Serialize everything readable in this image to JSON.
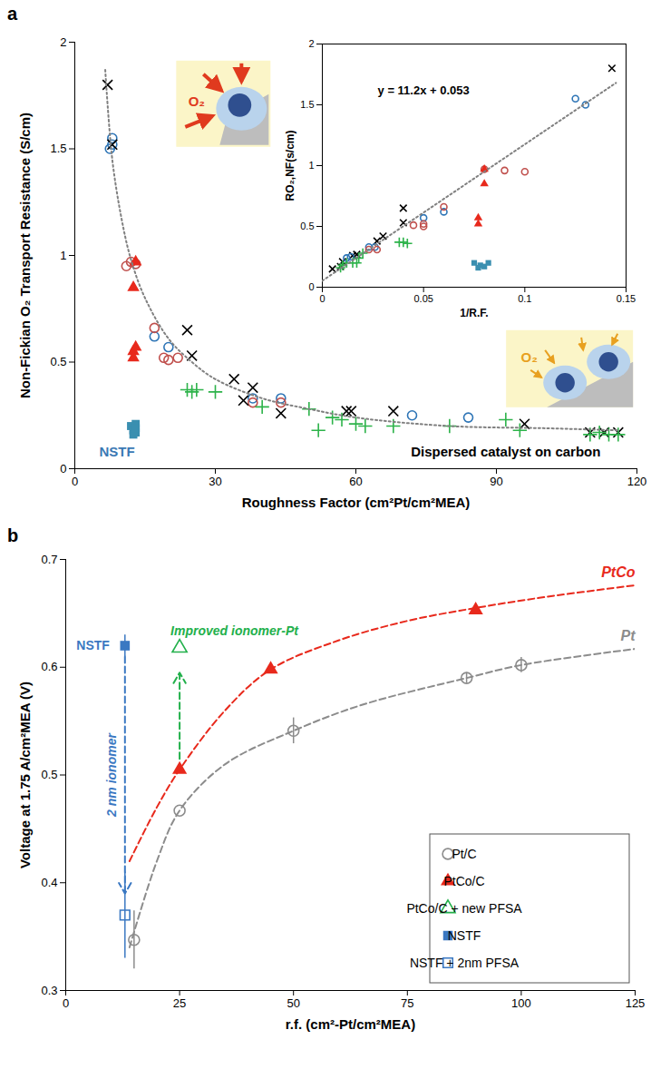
{
  "chart_data": [
    {
      "type": "scatter",
      "title": "a",
      "x_label": "Roughness Factor (cm²Pt/cm²MEA)",
      "y_label": "Non-Fickian O₂ Transport Resistance (S/cm)",
      "xlim": [
        0,
        120
      ],
      "xticks": [
        0,
        30,
        60,
        90,
        120
      ],
      "ylim": [
        0,
        2
      ],
      "yticks": [
        0,
        0.5,
        1,
        1.5,
        2
      ],
      "grid": false,
      "series": [
        {
          "color": "#2e75b6",
          "marker": "circle-open",
          "x": [
            7.5,
            8,
            8,
            17,
            20,
            38,
            44,
            72,
            84
          ],
          "values": [
            1.5,
            1.55,
            1.52,
            0.62,
            0.57,
            0.33,
            0.33,
            0.25,
            0.24
          ]
        },
        {
          "color": "#c0504d",
          "marker": "circle-open",
          "x": [
            11,
            12,
            13,
            17,
            19,
            20,
            22,
            38,
            44
          ],
          "values": [
            0.95,
            0.97,
            0.96,
            0.66,
            0.52,
            0.51,
            0.52,
            0.31,
            0.31
          ]
        },
        {
          "color": "#e8291c",
          "marker": "triangle",
          "x": [
            12.5,
            13,
            12.5,
            12.5,
            13
          ],
          "values": [
            0.85,
            0.97,
            0.55,
            0.52,
            0.57
          ]
        },
        {
          "color": "#000000",
          "marker": "x",
          "x": [
            7,
            8,
            24,
            25,
            34,
            36,
            38,
            44,
            58,
            59,
            68,
            96,
            110,
            113,
            116
          ],
          "values": [
            1.8,
            1.52,
            0.65,
            0.53,
            0.42,
            0.32,
            0.38,
            0.26,
            0.27,
            0.27,
            0.27,
            0.21,
            0.17,
            0.17,
            0.17
          ]
        },
        {
          "color": "#2db34a",
          "marker": "plus",
          "x": [
            24,
            25,
            26,
            30,
            40,
            50,
            52,
            55,
            57,
            60,
            62,
            68,
            80,
            92,
            95,
            110,
            112,
            114,
            116
          ],
          "values": [
            0.37,
            0.36,
            0.37,
            0.36,
            0.29,
            0.28,
            0.18,
            0.24,
            0.23,
            0.21,
            0.2,
            0.2,
            0.2,
            0.23,
            0.18,
            0.16,
            0.17,
            0.16,
            0.16
          ]
        },
        {
          "color": "#3a8fb0",
          "marker": "square",
          "x": [
            12,
            12.5,
            13,
            13,
            12.5,
            13
          ],
          "values": [
            0.2,
            0.18,
            0.17,
            0.21,
            0.16,
            0.19
          ]
        },
        {
          "type": "line",
          "line_style": "dotted",
          "color": "#808080",
          "x": [
            6.5,
            8,
            10,
            12,
            15,
            20,
            25,
            30,
            40,
            50,
            60,
            80,
            100,
            116
          ],
          "values": [
            1.87,
            1.45,
            1.17,
            0.98,
            0.8,
            0.61,
            0.5,
            0.42,
            0.33,
            0.28,
            0.24,
            0.2,
            0.19,
            0.18
          ]
        }
      ],
      "annotations": [
        {
          "text": "NSTF",
          "x": 9,
          "y": 0.08,
          "color": "#3a78b4"
        },
        {
          "text": "Dispersed catalyst on carbon",
          "x": 92,
          "y": 0.08,
          "color": "#000000"
        },
        {
          "text": "O₂",
          "x": 26,
          "y": 1.72,
          "color": "#e03a1e"
        },
        {
          "text": "O₂",
          "x": 97,
          "y": 0.52,
          "color": "#e8a020"
        }
      ]
    },
    {
      "type": "scatter",
      "x_label": "1/R.F.",
      "y_label": "RO₂,NF(s/cm)",
      "xlim": [
        0,
        0.15
      ],
      "xticks": [
        0,
        0.05,
        0.1,
        0.15
      ],
      "ylim": [
        0,
        2
      ],
      "yticks": [
        0,
        0.5,
        1,
        1.5,
        2
      ],
      "grid": false,
      "series": [
        {
          "color": "#000000",
          "marker": "x",
          "x": [
            0.143,
            0.04,
            0.04,
            0.03,
            0.027,
            0.017,
            0.015,
            0.01,
            0.009,
            0.005
          ],
          "values": [
            1.8,
            0.65,
            0.53,
            0.42,
            0.38,
            0.27,
            0.26,
            0.21,
            0.17,
            0.15
          ]
        },
        {
          "color": "#2e75b6",
          "marker": "circle-open",
          "x": [
            0.125,
            0.13,
            0.06,
            0.05,
            0.026,
            0.023,
            0.014,
            0.012
          ],
          "values": [
            1.55,
            1.5,
            0.62,
            0.57,
            0.33,
            0.33,
            0.25,
            0.24
          ]
        },
        {
          "color": "#c0504d",
          "marker": "circle-open",
          "x": [
            0.08,
            0.09,
            0.1,
            0.06,
            0.05,
            0.045,
            0.05,
            0.027,
            0.023
          ],
          "values": [
            0.97,
            0.96,
            0.95,
            0.66,
            0.52,
            0.51,
            0.5,
            0.31,
            0.31
          ]
        },
        {
          "color": "#e8291c",
          "marker": "triangle",
          "x": [
            0.08,
            0.08,
            0.077,
            0.077
          ],
          "values": [
            0.97,
            0.85,
            0.57,
            0.52
          ]
        },
        {
          "color": "#2db34a",
          "marker": "plus",
          "x": [
            0.04,
            0.042,
            0.038,
            0.02,
            0.018,
            0.017,
            0.015,
            0.012,
            0.01,
            0.009
          ],
          "values": [
            0.37,
            0.36,
            0.37,
            0.28,
            0.24,
            0.2,
            0.2,
            0.2,
            0.18,
            0.16
          ]
        },
        {
          "color": "#3a8fb0",
          "marker": "square",
          "x": [
            0.075,
            0.078,
            0.08,
            0.082,
            0.077
          ],
          "values": [
            0.2,
            0.18,
            0.17,
            0.2,
            0.16
          ]
        },
        {
          "type": "line",
          "line_style": "dotted",
          "color": "#808080",
          "x": [
            0,
            0.145
          ],
          "values": [
            0.053,
            1.68
          ]
        }
      ],
      "annotations": [
        {
          "text": "y = 11.2x + 0.053",
          "x": 0.05,
          "y": 1.62,
          "color": "#000000"
        }
      ]
    },
    {
      "type": "scatter",
      "title": "b",
      "x_label": "r.f. (cm²-Pt/cm²MEA)",
      "y_label": "Voltage at 1.75 A/cm²MEA (V)",
      "xlim": [
        0,
        125
      ],
      "xticks": [
        0,
        25,
        50,
        75,
        100,
        125
      ],
      "ylim": [
        0.3,
        0.7
      ],
      "yticks": [
        0.3,
        0.4,
        0.5,
        0.6,
        0.7
      ],
      "grid": false,
      "legend": "bottom-right",
      "series": [
        {
          "type": "line",
          "name": "PtCo",
          "line_style": "dashed",
          "color": "#e8291c",
          "x": [
            14,
            20,
            25,
            35,
            45,
            60,
            75,
            90,
            105,
            125
          ],
          "values": [
            0.42,
            0.47,
            0.505,
            0.56,
            0.598,
            0.625,
            0.643,
            0.655,
            0.665,
            0.676
          ]
        },
        {
          "type": "line",
          "name": "Pt",
          "line_style": "dashed",
          "color": "#8c8c8c",
          "x": [
            14,
            20,
            25,
            35,
            50,
            65,
            88,
            100,
            125
          ],
          "values": [
            0.34,
            0.42,
            0.467,
            0.51,
            0.541,
            0.565,
            0.59,
            0.602,
            0.617
          ]
        },
        {
          "name": "Pt/C",
          "color": "#8c8c8c",
          "marker": "circle-open",
          "x": [
            15,
            25,
            50,
            88,
            100
          ],
          "values": [
            0.347,
            0.467,
            0.541,
            0.59,
            0.602
          ],
          "errors": [
            0.027,
            null,
            0.012,
            0.005,
            0.007
          ]
        },
        {
          "name": "PtCo/C",
          "color": "#e8291c",
          "marker": "triangle",
          "x": [
            25,
            45,
            90
          ],
          "values": [
            0.505,
            0.598,
            0.653
          ]
        },
        {
          "name": "PtCo/C + new PFSA",
          "color": "#22b04b",
          "marker": "triangle-open",
          "x": [
            25
          ],
          "values": [
            0.618
          ]
        },
        {
          "name": "NSTF",
          "color": "#3a78c2",
          "marker": "square",
          "x": [
            13
          ],
          "values": [
            0.62
          ],
          "errors": [
            0.01
          ]
        },
        {
          "name": "NSTF + 2nm PFSA",
          "color": "#3a78c2",
          "marker": "square-open",
          "x": [
            13
          ],
          "values": [
            0.37
          ],
          "errors": [
            0.04
          ]
        }
      ],
      "arrows": [
        {
          "x1": 13,
          "y1": 0.61,
          "x2": 13,
          "y2": 0.39,
          "color": "#3a78c2",
          "line_style": "dashed",
          "label": "2 nm ionomer",
          "label_position": "left"
        },
        {
          "x1": 25,
          "y1": 0.515,
          "x2": 25,
          "y2": 0.595,
          "color": "#22b04b",
          "line_style": "dashed",
          "label": "Improved ionomer-Pt",
          "label_position": "above"
        }
      ],
      "annotations": [
        {
          "text": "NSTF",
          "x": 6,
          "y": 0.62,
          "color": "#3a78c2"
        }
      ]
    }
  ]
}
